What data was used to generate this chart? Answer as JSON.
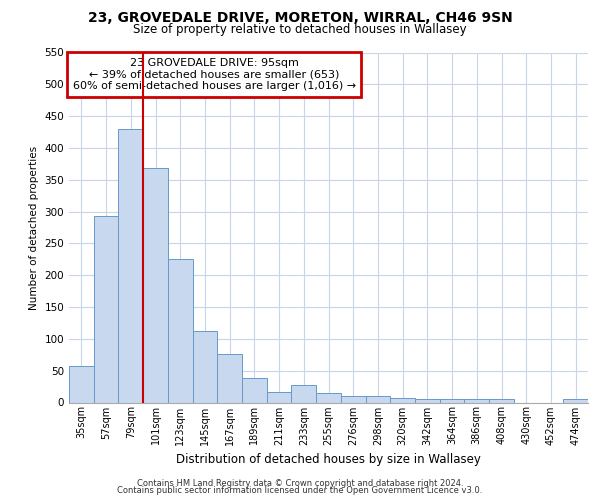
{
  "title_line1": "23, GROVEDALE DRIVE, MORETON, WIRRAL, CH46 9SN",
  "title_line2": "Size of property relative to detached houses in Wallasey",
  "xlabel": "Distribution of detached houses by size in Wallasey",
  "ylabel": "Number of detached properties",
  "bar_color": "#c8d8ee",
  "bar_edge_color": "#6699cc",
  "categories": [
    "35sqm",
    "57sqm",
    "79sqm",
    "101sqm",
    "123sqm",
    "145sqm",
    "167sqm",
    "189sqm",
    "211sqm",
    "233sqm",
    "255sqm",
    "276sqm",
    "298sqm",
    "320sqm",
    "342sqm",
    "364sqm",
    "386sqm",
    "408sqm",
    "430sqm",
    "452sqm",
    "474sqm"
  ],
  "values": [
    57,
    293,
    430,
    368,
    226,
    113,
    76,
    38,
    17,
    27,
    15,
    10,
    10,
    7,
    5,
    5,
    5,
    5,
    0,
    0,
    5
  ],
  "ylim": [
    0,
    550
  ],
  "yticks": [
    0,
    50,
    100,
    150,
    200,
    250,
    300,
    350,
    400,
    450,
    500,
    550
  ],
  "property_line_x": 2.5,
  "annotation_box_text": "23 GROVEDALE DRIVE: 95sqm\n← 39% of detached houses are smaller (653)\n60% of semi-detached houses are larger (1,016) →",
  "annotation_box_color": "#ffffff",
  "annotation_box_edgecolor": "#cc0000",
  "vline_color": "#cc0000",
  "footer_line1": "Contains HM Land Registry data © Crown copyright and database right 2024.",
  "footer_line2": "Contains public sector information licensed under the Open Government Licence v3.0.",
  "grid_color": "#c8d4e8",
  "background_color": "#ffffff"
}
